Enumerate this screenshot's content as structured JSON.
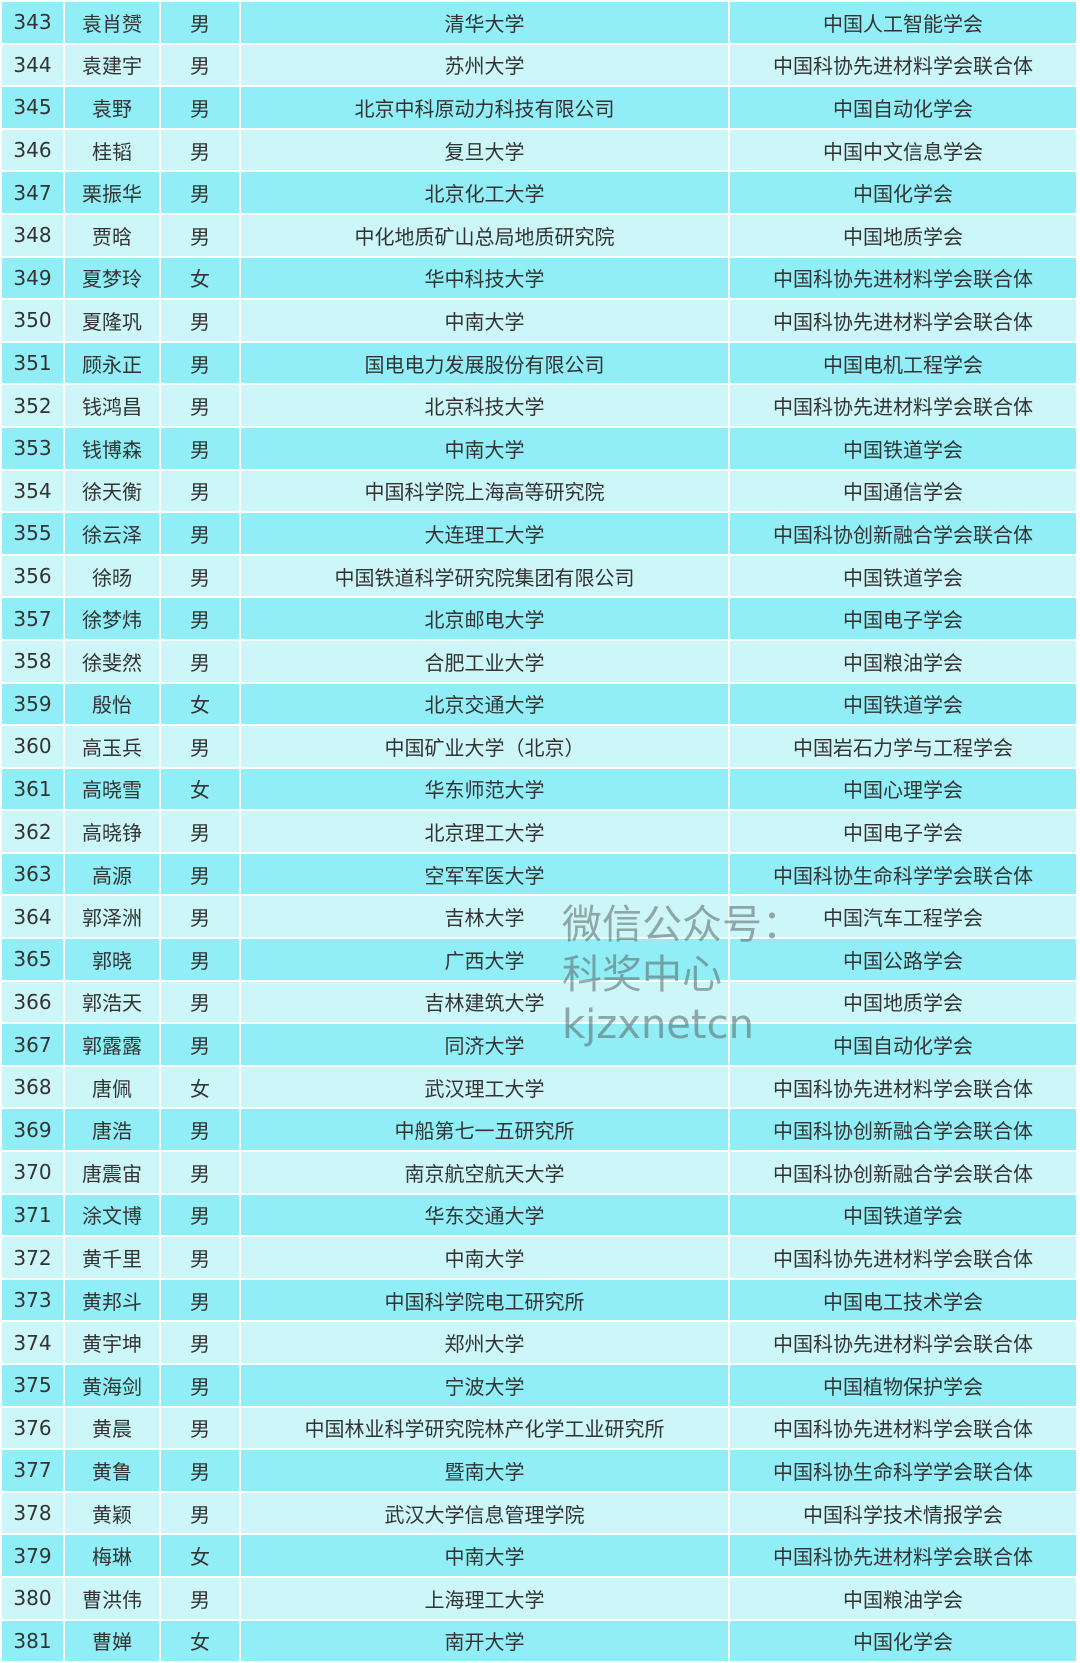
{
  "colors": {
    "row_dark": "#92eef6",
    "row_light": "#cdf6f9",
    "border": "#ffffff",
    "text": "#333333"
  },
  "rows": [
    [
      "343",
      "袁肖赟",
      "男",
      "清华大学",
      "中国人工智能学会"
    ],
    [
      "344",
      "袁建宇",
      "男",
      "苏州大学",
      "中国科协先进材料学会联合体"
    ],
    [
      "345",
      "袁野",
      "男",
      "北京中科原动力科技有限公司",
      "中国自动化学会"
    ],
    [
      "346",
      "桂韬",
      "男",
      "复旦大学",
      "中国中文信息学会"
    ],
    [
      "347",
      "栗振华",
      "男",
      "北京化工大学",
      "中国化学会"
    ],
    [
      "348",
      "贾晗",
      "男",
      "中化地质矿山总局地质研究院",
      "中国地质学会"
    ],
    [
      "349",
      "夏梦玲",
      "女",
      "华中科技大学",
      "中国科协先进材料学会联合体"
    ],
    [
      "350",
      "夏隆巩",
      "男",
      "中南大学",
      "中国科协先进材料学会联合体"
    ],
    [
      "351",
      "顾永正",
      "男",
      "国电电力发展股份有限公司",
      "中国电机工程学会"
    ],
    [
      "352",
      "钱鸿昌",
      "男",
      "北京科技大学",
      "中国科协先进材料学会联合体"
    ],
    [
      "353",
      "钱博森",
      "男",
      "中南大学",
      "中国铁道学会"
    ],
    [
      "354",
      "徐天衡",
      "男",
      "中国科学院上海高等研究院",
      "中国通信学会"
    ],
    [
      "355",
      "徐云泽",
      "男",
      "大连理工大学",
      "中国科协创新融合学会联合体"
    ],
    [
      "356",
      "徐旸",
      "男",
      "中国铁道科学研究院集团有限公司",
      "中国铁道学会"
    ],
    [
      "357",
      "徐梦炜",
      "男",
      "北京邮电大学",
      "中国电子学会"
    ],
    [
      "358",
      "徐斐然",
      "男",
      "合肥工业大学",
      "中国粮油学会"
    ],
    [
      "359",
      "殷怡",
      "女",
      "北京交通大学",
      "中国铁道学会"
    ],
    [
      "360",
      "高玉兵",
      "男",
      "中国矿业大学（北京）",
      "中国岩石力学与工程学会"
    ],
    [
      "361",
      "高晓雪",
      "女",
      "华东师范大学",
      "中国心理学会"
    ],
    [
      "362",
      "高晓铮",
      "男",
      "北京理工大学",
      "中国电子学会"
    ],
    [
      "363",
      "高源",
      "男",
      "空军军医大学",
      "中国科协生命科学学会联合体"
    ],
    [
      "364",
      "郭泽洲",
      "男",
      "吉林大学",
      "中国汽车工程学会"
    ],
    [
      "365",
      "郭晓",
      "男",
      "广西大学",
      "中国公路学会"
    ],
    [
      "366",
      "郭浩天",
      "男",
      "吉林建筑大学",
      "中国地质学会"
    ],
    [
      "367",
      "郭露露",
      "男",
      "同济大学",
      "中国自动化学会"
    ],
    [
      "368",
      "唐佩",
      "女",
      "武汉理工大学",
      "中国科协先进材料学会联合体"
    ],
    [
      "369",
      "唐浩",
      "男",
      "中船第七一五研究所",
      "中国科协创新融合学会联合体"
    ],
    [
      "370",
      "唐震宙",
      "男",
      "南京航空航天大学",
      "中国科协创新融合学会联合体"
    ],
    [
      "371",
      "涂文博",
      "男",
      "华东交通大学",
      "中国铁道学会"
    ],
    [
      "372",
      "黄千里",
      "男",
      "中南大学",
      "中国科协先进材料学会联合体"
    ],
    [
      "373",
      "黄邦斗",
      "男",
      "中国科学院电工研究所",
      "中国电工技术学会"
    ],
    [
      "374",
      "黄宇坤",
      "男",
      "郑州大学",
      "中国科协先进材料学会联合体"
    ],
    [
      "375",
      "黄海剑",
      "男",
      "宁波大学",
      "中国植物保护学会"
    ],
    [
      "376",
      "黄晨",
      "男",
      "中国林业科学研究院林产化学工业研究所",
      "中国科协先进材料学会联合体"
    ],
    [
      "377",
      "黄鲁",
      "男",
      "暨南大学",
      "中国科协生命科学学会联合体"
    ],
    [
      "378",
      "黄颖",
      "男",
      "武汉大学信息管理学院",
      "中国科学技术情报学会"
    ],
    [
      "379",
      "梅琳",
      "女",
      "中南大学",
      "中国科协先进材料学会联合体"
    ],
    [
      "380",
      "曹洪伟",
      "男",
      "上海理工大学",
      "中国粮油学会"
    ],
    [
      "381",
      "曹婵",
      "女",
      "南开大学",
      "中国化学会"
    ]
  ],
  "watermark": {
    "line1": "微信公众号：科奖中心",
    "line2": "kjzxnetcn"
  }
}
